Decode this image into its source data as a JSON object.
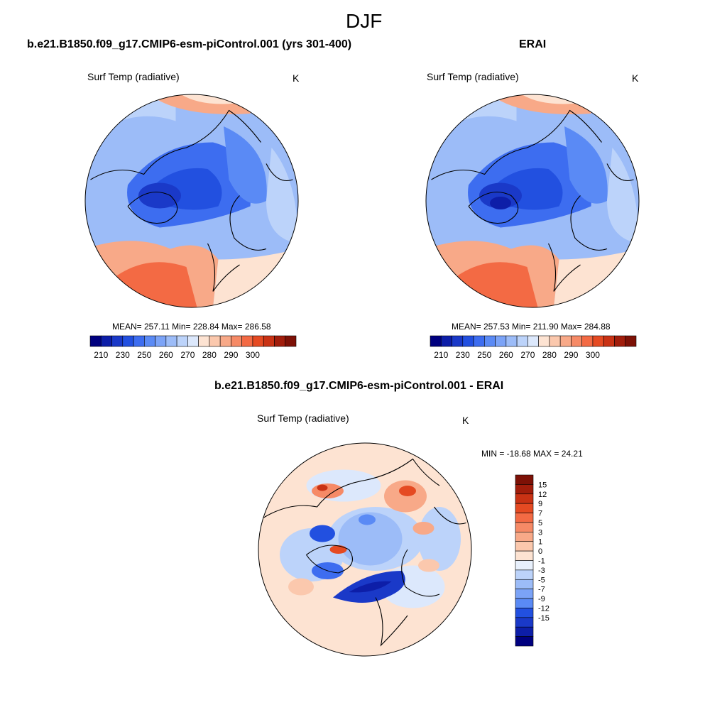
{
  "page": {
    "title": "DJF"
  },
  "chart_data": [
    {
      "type": "polar-contour-map",
      "title": "b.e21.B1850.f09_g17.CMIP6-esm-piControl.001 (yrs 301-400)",
      "variable": "Surf Temp (radiative)",
      "units": "K",
      "stats": {
        "text": "MEAN= 257.11  Min= 228.84  Max= 286.58",
        "mean": 257.11,
        "min": 228.84,
        "max": 286.58
      },
      "colorbar": {
        "orientation": "horizontal",
        "levels": [
          205,
          210,
          215,
          220,
          225,
          230,
          235,
          240,
          245,
          250,
          255,
          260,
          265,
          270,
          275,
          280,
          285,
          290,
          295,
          300,
          305
        ],
        "tick_labels": [
          "210",
          "230",
          "250",
          "260",
          "270",
          "280",
          "290",
          "300"
        ],
        "colors": [
          "#00007f",
          "#0d1ea8",
          "#1a39c8",
          "#2250e0",
          "#3d6df0",
          "#5a8af5",
          "#7ba3f7",
          "#9cbcf8",
          "#bcd3fa",
          "#dce8fc",
          "#fde3d2",
          "#fbc8ad",
          "#f8a988",
          "#f68a66",
          "#f36a44",
          "#e54a22",
          "#c93214",
          "#a11d0b",
          "#7d1106"
        ]
      }
    },
    {
      "type": "polar-contour-map",
      "title": "ERAI",
      "variable": "Surf Temp (radiative)",
      "units": "K",
      "stats": {
        "text": "MEAN= 257.53  Min= 211.90  Max= 284.88",
        "mean": 257.53,
        "min": 211.9,
        "max": 284.88
      },
      "colorbar": {
        "orientation": "horizontal",
        "levels": [
          205,
          210,
          215,
          220,
          225,
          230,
          235,
          240,
          245,
          250,
          255,
          260,
          265,
          270,
          275,
          280,
          285,
          290,
          295,
          300,
          305
        ],
        "tick_labels": [
          "210",
          "230",
          "250",
          "260",
          "270",
          "280",
          "290",
          "300"
        ],
        "colors": [
          "#00007f",
          "#0d1ea8",
          "#1a39c8",
          "#2250e0",
          "#3d6df0",
          "#5a8af5",
          "#7ba3f7",
          "#9cbcf8",
          "#bcd3fa",
          "#dce8fc",
          "#fde3d2",
          "#fbc8ad",
          "#f8a988",
          "#f68a66",
          "#f36a44",
          "#e54a22",
          "#c93214",
          "#a11d0b",
          "#7d1106"
        ]
      }
    },
    {
      "type": "polar-contour-map",
      "title": "b.e21.B1850.f09_g17.CMIP6-esm-piControl.001 - ERAI",
      "variable": "Surf Temp (radiative)",
      "units": "K",
      "stats": {
        "text": "MIN = -18.68 MAX =  24.21",
        "min": -18.68,
        "max": 24.21
      },
      "colorbar": {
        "orientation": "vertical",
        "tick_labels": [
          "15",
          "12",
          "9",
          "7",
          "5",
          "3",
          "1",
          "0",
          "-1",
          "-3",
          "-5",
          "-7",
          "-9",
          "-12",
          "-15"
        ],
        "colors": [
          "#7d1106",
          "#a11d0b",
          "#c93214",
          "#e54a22",
          "#f36a44",
          "#f68a66",
          "#f8a988",
          "#fbc8ad",
          "#fde3d2",
          "#e8f0fc",
          "#bcd3fa",
          "#9cbcf8",
          "#7ba3f7",
          "#5a8af5",
          "#2250e0",
          "#1a39c8",
          "#0d1ea8",
          "#00007f"
        ]
      }
    }
  ]
}
